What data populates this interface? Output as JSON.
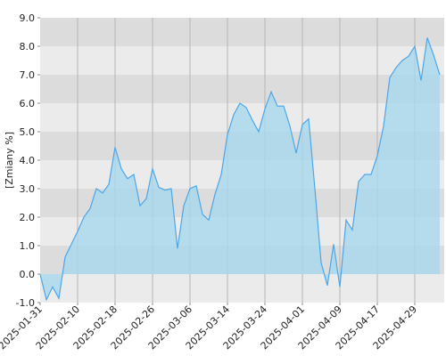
{
  "chart_data": {
    "type": "area",
    "y_label": "[Zmiany %]",
    "categories": [
      "2025-01-31",
      null,
      null,
      null,
      null,
      null,
      "2025-02-10",
      null,
      null,
      null,
      null,
      null,
      "2025-02-18",
      null,
      null,
      null,
      null,
      null,
      "2025-02-26",
      null,
      null,
      null,
      null,
      null,
      "2025-03-06",
      null,
      null,
      null,
      null,
      null,
      "2025-03-14",
      null,
      null,
      null,
      null,
      null,
      "2025-03-24",
      null,
      null,
      null,
      null,
      null,
      "2025-04-01",
      null,
      null,
      null,
      null,
      null,
      "2025-04-09",
      null,
      null,
      null,
      null,
      null,
      "2025-04-17",
      null,
      null,
      null,
      null,
      null,
      "2025-04-29",
      null,
      null,
      null,
      null
    ],
    "values": [
      0.0,
      -0.9,
      -0.45,
      -0.85,
      0.6,
      1.05,
      1.5,
      2.0,
      2.3,
      3.0,
      2.85,
      3.15,
      4.45,
      3.7,
      3.35,
      3.5,
      2.4,
      2.65,
      3.7,
      3.05,
      2.95,
      3.0,
      0.9,
      2.4,
      3.0,
      3.1,
      2.1,
      1.9,
      2.8,
      3.5,
      4.9,
      5.6,
      6.0,
      5.85,
      5.4,
      5.0,
      5.8,
      6.4,
      5.9,
      5.9,
      5.2,
      4.25,
      5.25,
      5.45,
      3.0,
      0.4,
      -0.4,
      1.05,
      -0.45,
      1.9,
      1.55,
      3.25,
      3.5,
      3.5,
      4.15,
      5.2,
      6.9,
      7.25,
      7.5,
      7.65,
      8.0,
      6.8,
      8.3,
      7.7,
      7.0
    ],
    "color": "#4da6e8",
    "fill": "#a8d8ee",
    "ylim": [
      -1.0,
      9.0
    ],
    "yticks": [
      {
        "value": -1,
        "label": "-1.0"
      },
      {
        "value": 0,
        "label": "0.0"
      },
      {
        "value": 1,
        "label": "1.0"
      },
      {
        "value": 2,
        "label": "2.0"
      },
      {
        "value": 3,
        "label": "3.0"
      },
      {
        "value": 4,
        "label": "4.0"
      },
      {
        "value": 5,
        "label": "5.0"
      },
      {
        "value": 6,
        "label": "6.0"
      },
      {
        "value": 7,
        "label": "7.0"
      },
      {
        "value": 8,
        "label": "8.0"
      },
      {
        "value": 9,
        "label": "9.0"
      }
    ],
    "grid": true
  }
}
